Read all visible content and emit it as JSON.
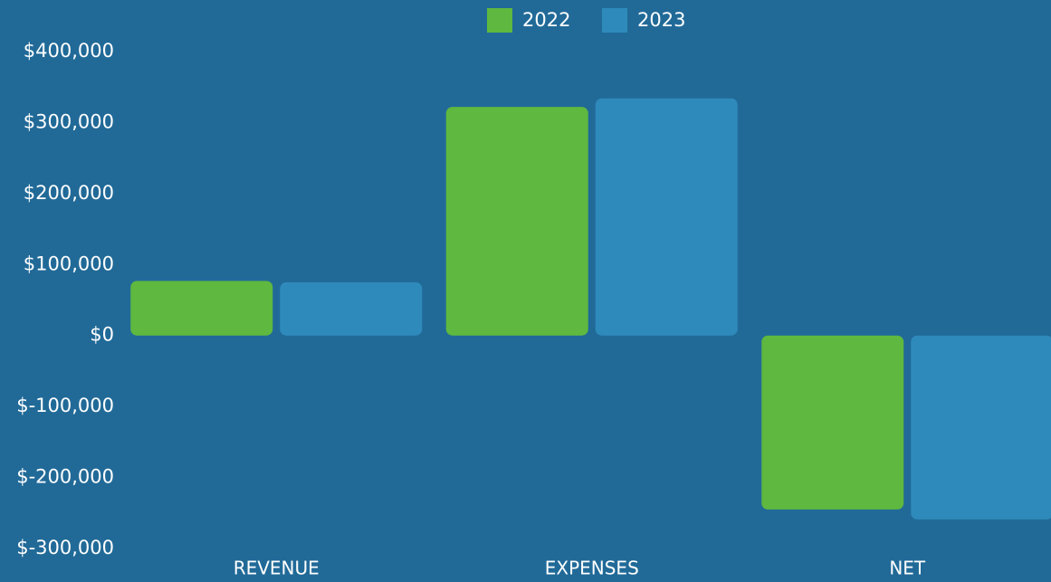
{
  "chart_data": {
    "type": "bar",
    "categories": [
      "REVENUE",
      "EXPENSES",
      "NET"
    ],
    "series": [
      {
        "name": "2022",
        "color": "#5fb83f",
        "values": [
          77000,
          322000,
          -245000
        ]
      },
      {
        "name": "2023",
        "color": "#2e8abb",
        "values": [
          75000,
          334000,
          -259000
        ]
      }
    ],
    "ylim": [
      -300000,
      400000
    ],
    "yticks": [
      {
        "value": -300000,
        "label": "$-300,000"
      },
      {
        "value": -200000,
        "label": "$-200,000"
      },
      {
        "value": -100000,
        "label": "$-100,000"
      },
      {
        "value": 0,
        "label": "$0"
      },
      {
        "value": 100000,
        "label": "$100,000"
      },
      {
        "value": 200000,
        "label": "$200,000"
      },
      {
        "value": 300000,
        "label": "$300,000"
      },
      {
        "value": 400000,
        "label": "$400,000"
      }
    ],
    "legend": "top"
  }
}
